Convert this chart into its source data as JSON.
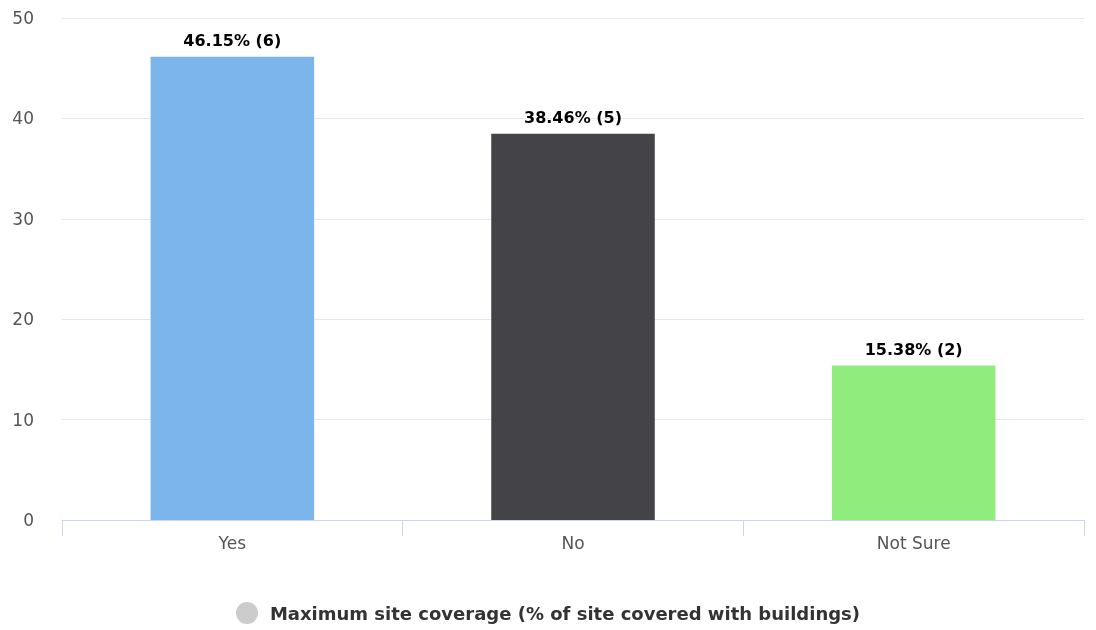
{
  "chart_data": {
    "type": "bar",
    "categories": [
      "Yes",
      "No",
      "Not Sure"
    ],
    "series": [
      {
        "name": "Maximum site coverage (% of site covered with buildings)",
        "color": "#cccccc",
        "colors": [
          "#7cb5ec",
          "#434348",
          "#90ed7d"
        ],
        "values": [
          46.15,
          38.46,
          15.38
        ],
        "value_labels": [
          "46.15% (6)",
          "38.46% (5)",
          "15.38% (2)"
        ]
      }
    ],
    "ylim": [
      0,
      50
    ],
    "yticks": [
      0,
      10,
      20,
      30,
      40,
      50
    ],
    "grid": "y",
    "legend": "bottom"
  }
}
